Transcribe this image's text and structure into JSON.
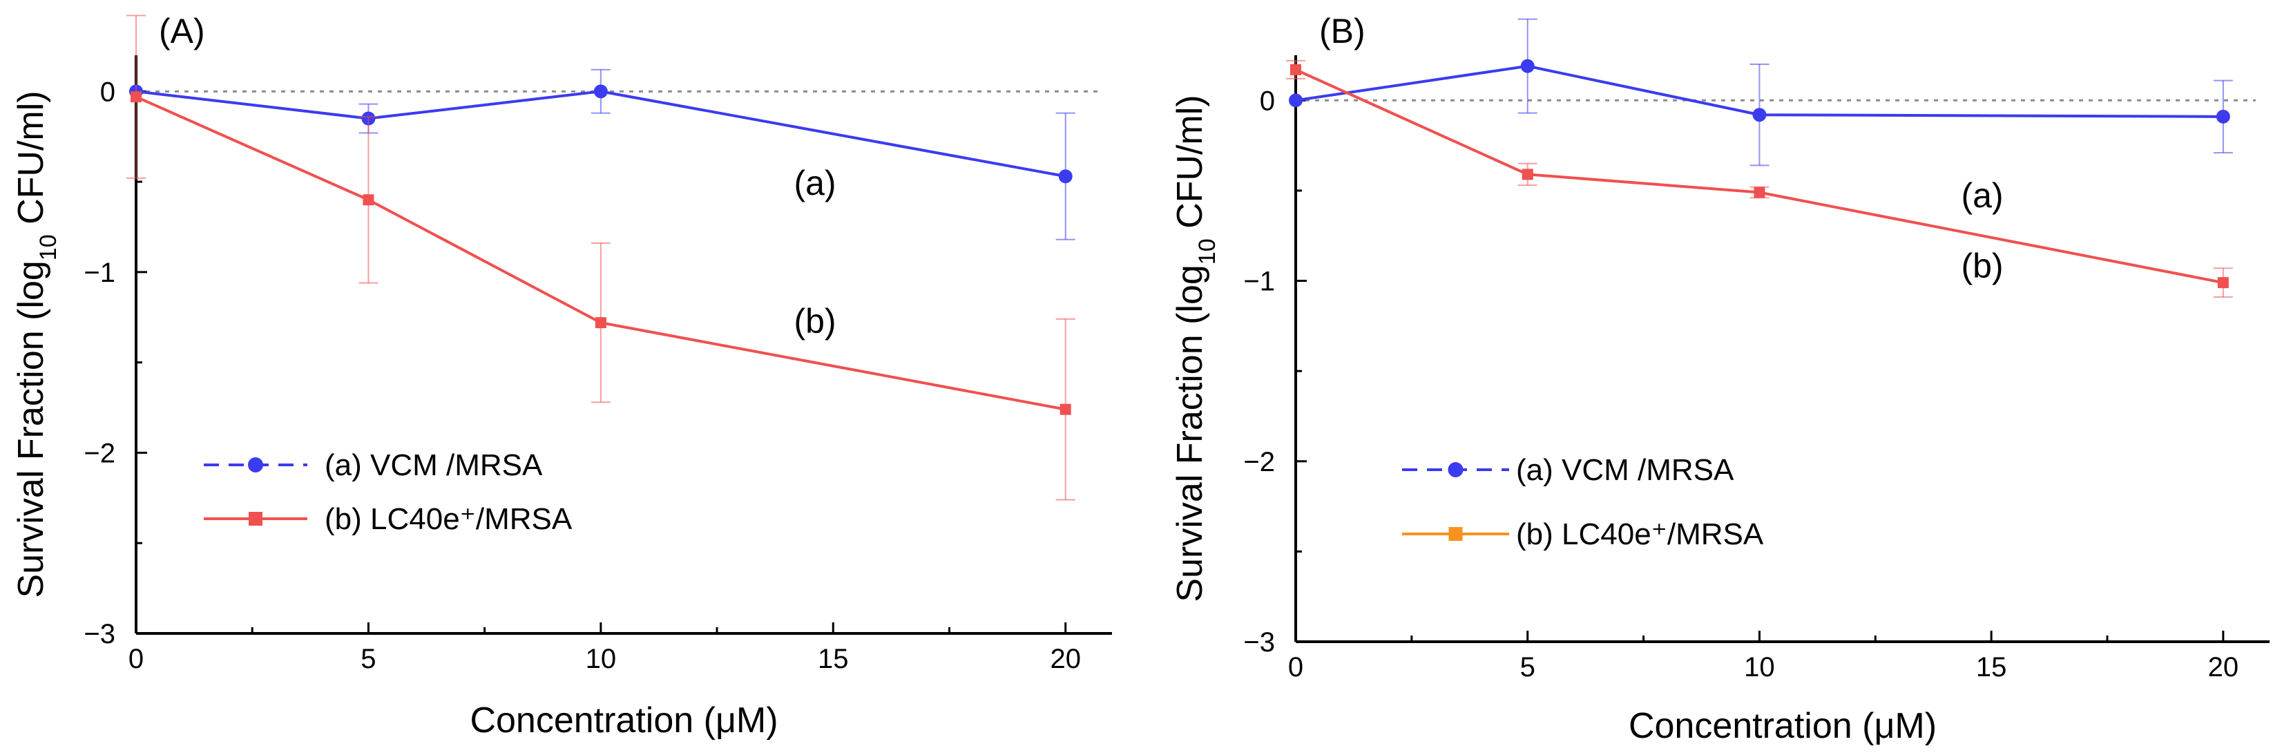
{
  "chart_data": [
    {
      "type": "line",
      "panel_label": "(A)",
      "xlabel": "Concentration (μM)",
      "ylabel_prefix": "Survival Fraction (log",
      "ylabel_sub": "10",
      "ylabel_suffix": " CFU/ml)",
      "xlim": [
        0,
        21
      ],
      "ylim": [
        -3,
        0.2
      ],
      "xticks": [
        0,
        5,
        10,
        15,
        20
      ],
      "xticklabels": [
        "0",
        "5",
        "10",
        "15",
        "20"
      ],
      "yticks": [
        -3,
        -2,
        -1,
        0
      ],
      "yticklabels": [
        "−3",
        "−2",
        "−1",
        "0"
      ],
      "reference_y": 0,
      "series": [
        {
          "name": "(a) VCM /MRSA",
          "curve_label": "(a)",
          "color": "#3b3bf0",
          "marker": "circle",
          "legend_line": "dashed",
          "x": [
            0,
            5,
            10,
            20
          ],
          "y": [
            0,
            -0.15,
            0,
            -0.47
          ],
          "err": [
            0,
            0.08,
            0.12,
            0.35
          ]
        },
        {
          "name": "(b) LC40e⁺/MRSA",
          "curve_label": "(b)",
          "color": "#f05050",
          "marker": "square",
          "legend_line": "solid",
          "x": [
            0,
            5,
            10,
            20
          ],
          "y": [
            -0.03,
            -0.6,
            -1.28,
            -1.76
          ],
          "err": [
            0.45,
            0.46,
            0.44,
            0.5
          ]
        }
      ]
    },
    {
      "type": "line",
      "panel_label": "(B)",
      "xlabel": "Concentration (μM)",
      "ylabel_prefix": "Survival Fraction (log",
      "ylabel_sub": "10",
      "ylabel_suffix": " CFU/ml)",
      "xlim": [
        0,
        21
      ],
      "ylim": [
        -3,
        0.25
      ],
      "xticks": [
        0,
        5,
        10,
        15,
        20
      ],
      "xticklabels": [
        "0",
        "5",
        "10",
        "15",
        "20"
      ],
      "yticks": [
        -3,
        -2,
        -1,
        0
      ],
      "yticklabels": [
        "−3",
        "−2",
        "−1",
        "0"
      ],
      "reference_y": 0,
      "series": [
        {
          "name": "(a) VCM /MRSA",
          "curve_label": "(a)",
          "color": "#3b3bf0",
          "marker": "circle",
          "legend_line": "dashed",
          "x": [
            0,
            5,
            10,
            20
          ],
          "y": [
            0,
            0.19,
            -0.08,
            -0.09
          ],
          "err": [
            0,
            0.26,
            0.28,
            0.2
          ]
        },
        {
          "name": "(b) LC40e⁺/MRSA",
          "curve_label": "(b)",
          "color": "#f05050",
          "legend_color": "#f7931e",
          "marker": "square",
          "legend_line": "solid",
          "x": [
            0,
            5,
            10,
            20
          ],
          "y": [
            0.17,
            -0.41,
            -0.51,
            -1.01
          ],
          "err": [
            0.05,
            0.06,
            0.03,
            0.08
          ]
        }
      ]
    }
  ]
}
